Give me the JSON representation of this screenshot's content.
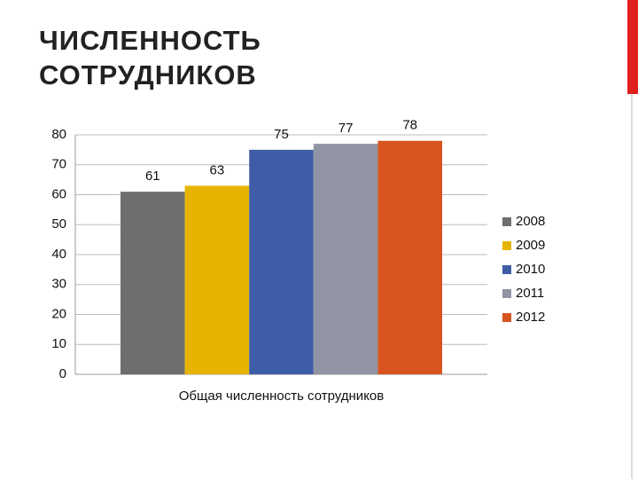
{
  "chart_data": {
    "type": "bar",
    "title": "ЧИСЛЕННОСТЬ СОТРУДНИКОВ",
    "categories": [
      "Общая численность сотрудников"
    ],
    "series": [
      {
        "name": "2008",
        "color": "#6e6e6e",
        "values": [
          61
        ]
      },
      {
        "name": "2009",
        "color": "#e6b400",
        "values": [
          63
        ]
      },
      {
        "name": "2010",
        "color": "#3f5da6",
        "values": [
          75
        ]
      },
      {
        "name": "2011",
        "color": "#9094a4",
        "values": [
          77
        ]
      },
      {
        "name": "2012",
        "color": "#d9541e",
        "values": [
          78
        ]
      }
    ],
    "ylim": [
      0,
      80
    ],
    "yticks": [
      0,
      10,
      20,
      30,
      40,
      50,
      60,
      70,
      80
    ],
    "grid": true,
    "legend": "right"
  }
}
